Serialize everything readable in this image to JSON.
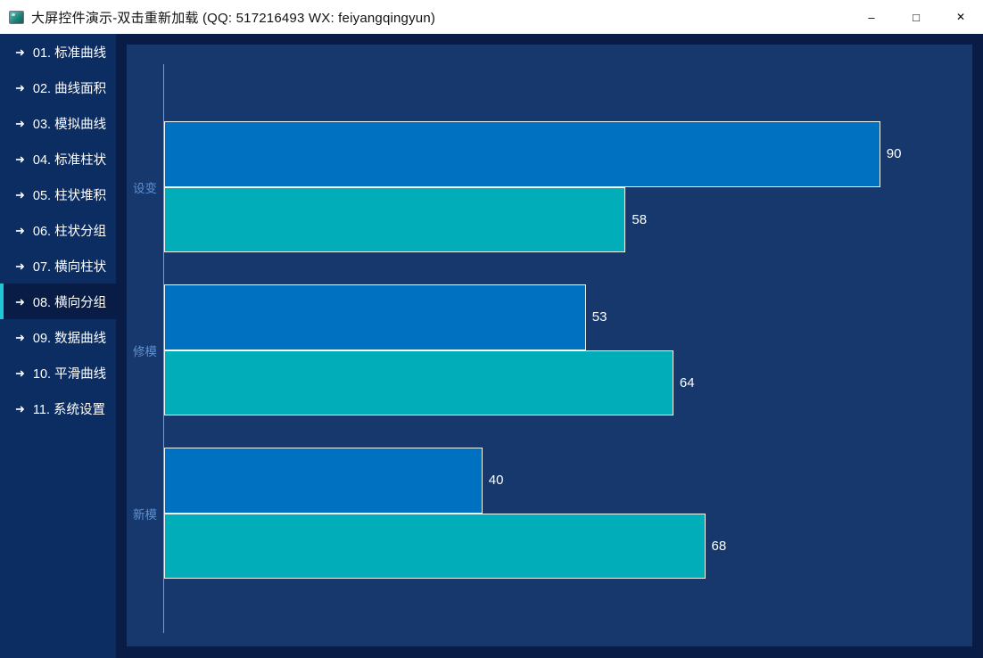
{
  "window": {
    "title": "大屏控件演示-双击重新加载 (QQ: 517216493  WX: feiyangqingyun)",
    "controls": {
      "minimize": "–",
      "maximize": "□",
      "close": "✕"
    }
  },
  "sidebar": {
    "arrow_icon": "➜",
    "items": [
      {
        "label": "01. 标准曲线",
        "active": false
      },
      {
        "label": "02. 曲线面积",
        "active": false
      },
      {
        "label": "03. 模拟曲线",
        "active": false
      },
      {
        "label": "04. 标准柱状",
        "active": false
      },
      {
        "label": "05. 柱状堆积",
        "active": false
      },
      {
        "label": "06. 柱状分组",
        "active": false
      },
      {
        "label": "07. 横向柱状",
        "active": false
      },
      {
        "label": "08. 横向分组",
        "active": true
      },
      {
        "label": "09. 数据曲线",
        "active": false
      },
      {
        "label": "10. 平滑曲线",
        "active": false
      },
      {
        "label": "11. 系统设置",
        "active": false
      }
    ]
  },
  "chart_data": {
    "type": "bar",
    "orientation": "horizontal",
    "title": "",
    "categories": [
      "设变",
      "修模",
      "新模"
    ],
    "series": [
      {
        "name": "blue",
        "color": "#0070c0",
        "values": [
          90,
          53,
          40
        ]
      },
      {
        "name": "teal",
        "color": "#01adb8",
        "values": [
          58,
          64,
          68
        ]
      }
    ],
    "xlim": [
      0,
      100
    ],
    "grid": false,
    "legend": "none",
    "value_labels": "outside-end",
    "axis_color": "#6ba1d9",
    "category_label_color": "#5c90d2"
  },
  "colors": {
    "titlebar_bg": "#ffffff",
    "window_bg": "#081c45",
    "sidebar_bg": "#0c2d62",
    "panel_bg": "#17386c",
    "active_accent": "#1fc8d4",
    "bar_blue": "#0070c0",
    "bar_teal": "#01adb8"
  }
}
